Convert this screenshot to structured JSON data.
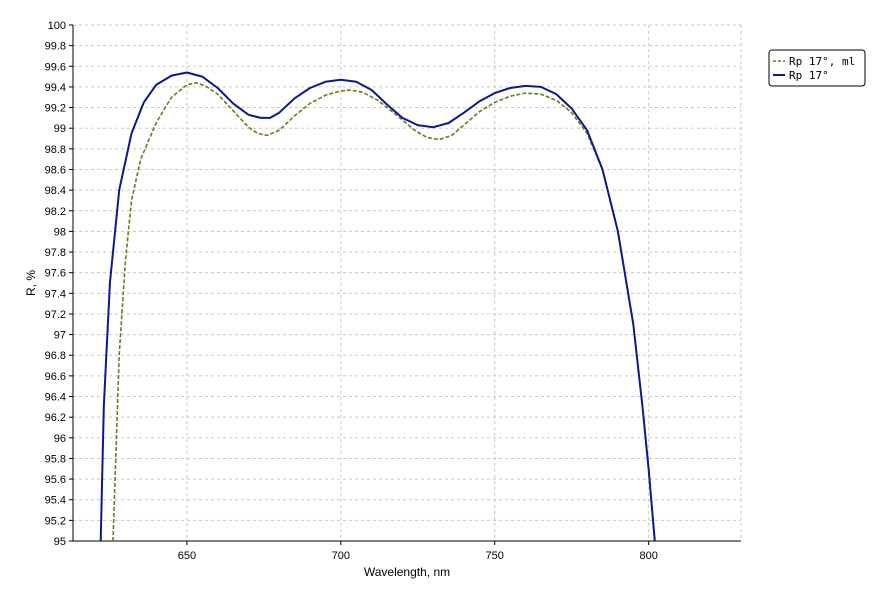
{
  "chart_data": {
    "type": "line",
    "xlabel": "Wavelength, nm",
    "ylabel": "R, %",
    "xlim": [
      613,
      830
    ],
    "ylim": [
      95,
      100
    ],
    "x_ticks": [
      650,
      700,
      750,
      800
    ],
    "y_ticks": [
      95,
      95.2,
      95.4,
      95.6,
      95.8,
      96,
      96.2,
      96.4,
      96.6,
      96.8,
      97,
      97.2,
      97.4,
      97.6,
      97.8,
      98,
      98.2,
      98.4,
      98.6,
      98.8,
      99,
      99.2,
      99.4,
      99.6,
      99.8,
      100
    ],
    "grid": true,
    "legend_position": "top-right, outside plot area",
    "series": [
      {
        "name": "Rp 17°, ml",
        "color": "#6b7a1a",
        "style": "dashed",
        "points": [
          [
            626,
            95.0
          ],
          [
            627,
            95.9
          ],
          [
            628,
            96.8
          ],
          [
            630,
            97.7
          ],
          [
            632,
            98.3
          ],
          [
            635,
            98.7
          ],
          [
            640,
            99.05
          ],
          [
            645,
            99.3
          ],
          [
            650,
            99.42
          ],
          [
            653,
            99.44
          ],
          [
            656,
            99.41
          ],
          [
            660,
            99.33
          ],
          [
            665,
            99.17
          ],
          [
            670,
            99.01
          ],
          [
            673,
            98.95
          ],
          [
            676,
            98.93
          ],
          [
            680,
            98.98
          ],
          [
            685,
            99.12
          ],
          [
            690,
            99.24
          ],
          [
            695,
            99.32
          ],
          [
            700,
            99.36
          ],
          [
            703,
            99.37
          ],
          [
            707,
            99.35
          ],
          [
            712,
            99.27
          ],
          [
            718,
            99.13
          ],
          [
            724,
            98.98
          ],
          [
            728,
            98.91
          ],
          [
            732,
            98.89
          ],
          [
            736,
            98.93
          ],
          [
            740,
            99.03
          ],
          [
            745,
            99.16
          ],
          [
            750,
            99.25
          ],
          [
            755,
            99.31
          ],
          [
            760,
            99.34
          ],
          [
            765,
            99.33
          ],
          [
            770,
            99.27
          ],
          [
            775,
            99.15
          ],
          [
            780,
            98.95
          ],
          [
            785,
            98.6
          ],
          [
            790,
            98.0
          ],
          [
            795,
            97.1
          ],
          [
            798,
            96.3
          ],
          [
            800,
            95.7
          ],
          [
            802,
            95.0
          ]
        ]
      },
      {
        "name": "Rp 17°",
        "color": "#0a1a8c",
        "style": "solid",
        "points": [
          [
            622,
            95.0
          ],
          [
            623,
            96.3
          ],
          [
            625,
            97.5
          ],
          [
            628,
            98.4
          ],
          [
            632,
            98.95
          ],
          [
            636,
            99.25
          ],
          [
            640,
            99.42
          ],
          [
            645,
            99.51
          ],
          [
            650,
            99.54
          ],
          [
            655,
            99.5
          ],
          [
            660,
            99.39
          ],
          [
            665,
            99.24
          ],
          [
            670,
            99.13
          ],
          [
            674,
            99.1
          ],
          [
            677,
            99.1
          ],
          [
            680,
            99.15
          ],
          [
            685,
            99.29
          ],
          [
            690,
            99.39
          ],
          [
            695,
            99.45
          ],
          [
            700,
            99.47
          ],
          [
            705,
            99.45
          ],
          [
            710,
            99.37
          ],
          [
            715,
            99.23
          ],
          [
            720,
            99.1
          ],
          [
            725,
            99.03
          ],
          [
            730,
            99.01
          ],
          [
            735,
            99.05
          ],
          [
            740,
            99.15
          ],
          [
            745,
            99.26
          ],
          [
            750,
            99.34
          ],
          [
            755,
            99.39
          ],
          [
            760,
            99.41
          ],
          [
            765,
            99.4
          ],
          [
            770,
            99.33
          ],
          [
            775,
            99.19
          ],
          [
            780,
            98.98
          ],
          [
            785,
            98.6
          ],
          [
            790,
            98.0
          ],
          [
            795,
            97.1
          ],
          [
            798,
            96.3
          ],
          [
            800,
            95.7
          ],
          [
            802,
            95.0
          ]
        ]
      }
    ]
  }
}
